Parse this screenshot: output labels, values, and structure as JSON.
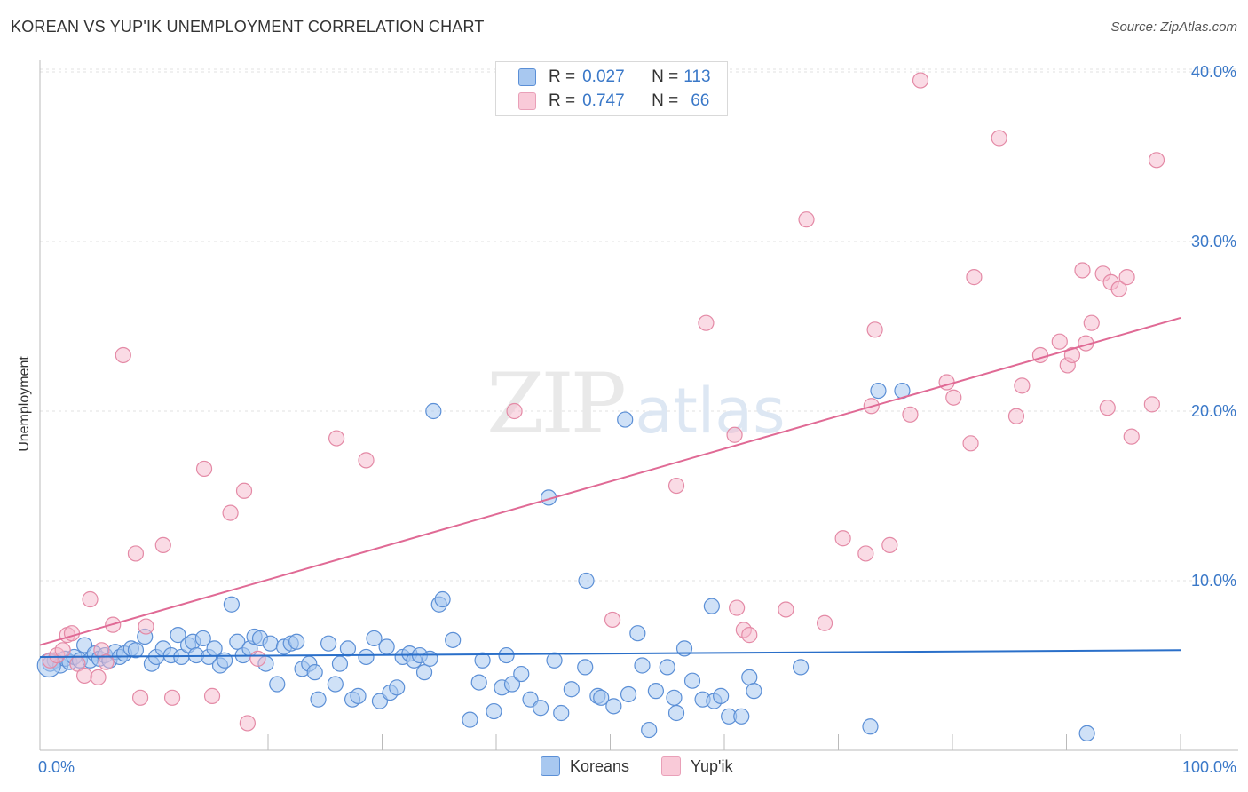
{
  "title": "KOREAN VS YUP'IK UNEMPLOYMENT CORRELATION CHART",
  "source": "Source: ZipAtlas.com",
  "watermark": {
    "zip": "ZIP",
    "atlas": "atlas"
  },
  "legend": {
    "koreans": {
      "r_label": "R = ",
      "r_value": "0.027",
      "n_label": "N = ",
      "n_value": "113"
    },
    "yupik": {
      "r_label": "R = ",
      "r_value": "0.747",
      "n_label": "N = ",
      "n_value": "66"
    }
  },
  "colors": {
    "koreans_fill": "#a8c8f0",
    "koreans_stroke": "#5b8fd6",
    "koreans_line": "#2a6fc9",
    "yupik_fill": "#f5b8cb",
    "yupik_stroke": "#e48aa6",
    "yupik_line": "#e06a95",
    "axis_label": "#3a78c8",
    "grid": "#e0e0e0"
  },
  "chart_data": {
    "type": "scatter",
    "title": "KOREAN VS YUP'IK UNEMPLOYMENT CORRELATION CHART",
    "xlabel": "",
    "ylabel": "Unemployment",
    "xlim": [
      0,
      100
    ],
    "ylim": [
      0,
      42
    ],
    "x_tick_labels": [
      "0.0%",
      "100.0%"
    ],
    "y_ticks": [
      10,
      20,
      30,
      40
    ],
    "y_tick_labels": [
      "10.0%",
      "20.0%",
      "30.0%",
      "40.0%"
    ],
    "series": [
      {
        "name": "Koreans",
        "trend": {
          "x": [
            0,
            100
          ],
          "y": [
            5.5,
            5.9
          ]
        },
        "points": [
          [
            0.9,
            5.1
          ],
          [
            1.3,
            5.3
          ],
          [
            1.8,
            5.0
          ],
          [
            2.2,
            5.4
          ],
          [
            2.6,
            5.2
          ],
          [
            3.0,
            5.5
          ],
          [
            3.5,
            5.3
          ],
          [
            3.9,
            6.2
          ],
          [
            4.4,
            5.3
          ],
          [
            4.8,
            5.7
          ],
          [
            5.2,
            5.4
          ],
          [
            5.7,
            5.6
          ],
          [
            6.1,
            5.3
          ],
          [
            6.6,
            5.8
          ],
          [
            7.0,
            5.5
          ],
          [
            7.4,
            5.7
          ],
          [
            8.0,
            6.0
          ],
          [
            8.4,
            5.9
          ],
          [
            9.2,
            6.7
          ],
          [
            9.8,
            5.1
          ],
          [
            10.2,
            5.5
          ],
          [
            10.8,
            6.0
          ],
          [
            11.5,
            5.6
          ],
          [
            12.1,
            6.8
          ],
          [
            12.4,
            5.5
          ],
          [
            13.0,
            6.2
          ],
          [
            13.4,
            6.4
          ],
          [
            13.7,
            5.6
          ],
          [
            14.3,
            6.6
          ],
          [
            14.8,
            5.5
          ],
          [
            15.3,
            6.0
          ],
          [
            15.8,
            5.0
          ],
          [
            16.2,
            5.3
          ],
          [
            16.8,
            8.6
          ],
          [
            17.3,
            6.4
          ],
          [
            17.8,
            5.6
          ],
          [
            18.4,
            6.0
          ],
          [
            18.8,
            6.7
          ],
          [
            19.3,
            6.6
          ],
          [
            19.8,
            5.1
          ],
          [
            20.2,
            6.3
          ],
          [
            20.8,
            3.9
          ],
          [
            21.4,
            6.1
          ],
          [
            22.0,
            6.3
          ],
          [
            22.5,
            6.4
          ],
          [
            23.0,
            4.8
          ],
          [
            23.6,
            5.1
          ],
          [
            24.1,
            4.6
          ],
          [
            24.4,
            3.0
          ],
          [
            25.3,
            6.3
          ],
          [
            25.9,
            3.9
          ],
          [
            26.3,
            5.1
          ],
          [
            27.0,
            6.0
          ],
          [
            27.4,
            3.0
          ],
          [
            27.9,
            3.2
          ],
          [
            28.6,
            5.5
          ],
          [
            29.3,
            6.6
          ],
          [
            29.8,
            2.9
          ],
          [
            30.4,
            6.1
          ],
          [
            30.7,
            3.4
          ],
          [
            31.3,
            3.7
          ],
          [
            31.8,
            5.5
          ],
          [
            32.4,
            5.7
          ],
          [
            32.8,
            5.3
          ],
          [
            33.3,
            5.6
          ],
          [
            33.7,
            4.6
          ],
          [
            34.2,
            5.4
          ],
          [
            35.0,
            8.6
          ],
          [
            35.3,
            8.9
          ],
          [
            36.2,
            6.5
          ],
          [
            34.5,
            20.0
          ],
          [
            37.7,
            1.8
          ],
          [
            38.5,
            4.0
          ],
          [
            38.8,
            5.3
          ],
          [
            39.8,
            2.3
          ],
          [
            40.5,
            3.7
          ],
          [
            40.9,
            5.6
          ],
          [
            41.4,
            3.9
          ],
          [
            44.6,
            14.9
          ],
          [
            42.2,
            4.5
          ],
          [
            43.0,
            3.0
          ],
          [
            43.9,
            2.5
          ],
          [
            45.1,
            5.3
          ],
          [
            45.7,
            2.2
          ],
          [
            46.6,
            3.6
          ],
          [
            47.8,
            4.9
          ],
          [
            47.9,
            10.0
          ],
          [
            48.9,
            3.2
          ],
          [
            49.2,
            3.1
          ],
          [
            50.3,
            2.6
          ],
          [
            51.3,
            19.5
          ],
          [
            51.6,
            3.3
          ],
          [
            52.4,
            6.9
          ],
          [
            52.8,
            5.0
          ],
          [
            53.4,
            1.2
          ],
          [
            54.0,
            3.5
          ],
          [
            55.0,
            4.9
          ],
          [
            55.6,
            3.1
          ],
          [
            55.8,
            2.2
          ],
          [
            56.5,
            6.0
          ],
          [
            57.2,
            4.1
          ],
          [
            58.1,
            3.0
          ],
          [
            58.9,
            8.5
          ],
          [
            59.1,
            2.9
          ],
          [
            59.7,
            3.2
          ],
          [
            60.4,
            2.0
          ],
          [
            61.5,
            2.0
          ],
          [
            62.2,
            4.3
          ],
          [
            62.6,
            3.5
          ],
          [
            66.7,
            4.9
          ],
          [
            72.8,
            1.4
          ],
          [
            73.5,
            21.2
          ],
          [
            75.6,
            21.2
          ],
          [
            91.8,
            1.0
          ]
        ],
        "big_point": [
          0.8,
          5.0
        ]
      },
      {
        "name": "Yup'ik",
        "trend": {
          "x": [
            0,
            100
          ],
          "y": [
            6.2,
            25.5
          ]
        },
        "points": [
          [
            0.9,
            5.3
          ],
          [
            1.5,
            5.6
          ],
          [
            2.0,
            5.9
          ],
          [
            2.4,
            6.8
          ],
          [
            2.8,
            6.9
          ],
          [
            3.3,
            5.1
          ],
          [
            3.9,
            4.4
          ],
          [
            4.4,
            8.9
          ],
          [
            5.1,
            4.3
          ],
          [
            5.4,
            5.9
          ],
          [
            5.8,
            5.2
          ],
          [
            6.4,
            7.4
          ],
          [
            7.3,
            23.3
          ],
          [
            8.4,
            11.6
          ],
          [
            8.8,
            3.1
          ],
          [
            9.3,
            7.3
          ],
          [
            10.8,
            12.1
          ],
          [
            11.6,
            3.1
          ],
          [
            14.4,
            16.6
          ],
          [
            15.1,
            3.2
          ],
          [
            16.7,
            14.0
          ],
          [
            17.9,
            15.3
          ],
          [
            18.2,
            1.6
          ],
          [
            19.1,
            5.4
          ],
          [
            26.0,
            18.4
          ],
          [
            28.6,
            17.1
          ],
          [
            41.6,
            20.0
          ],
          [
            55.8,
            15.6
          ],
          [
            50.2,
            7.7
          ],
          [
            58.4,
            25.2
          ],
          [
            60.9,
            18.6
          ],
          [
            61.1,
            8.4
          ],
          [
            61.7,
            7.1
          ],
          [
            62.2,
            6.8
          ],
          [
            65.4,
            8.3
          ],
          [
            67.2,
            31.3
          ],
          [
            68.8,
            7.5
          ],
          [
            70.4,
            12.5
          ],
          [
            72.4,
            11.6
          ],
          [
            72.9,
            20.3
          ],
          [
            73.2,
            24.8
          ],
          [
            74.5,
            12.1
          ],
          [
            76.3,
            19.8
          ],
          [
            77.2,
            39.5
          ],
          [
            79.5,
            21.7
          ],
          [
            80.1,
            20.8
          ],
          [
            81.6,
            18.1
          ],
          [
            81.9,
            27.9
          ],
          [
            84.1,
            36.1
          ],
          [
            85.6,
            19.7
          ],
          [
            86.1,
            21.5
          ],
          [
            87.7,
            23.3
          ],
          [
            89.4,
            24.1
          ],
          [
            90.1,
            22.7
          ],
          [
            90.5,
            23.3
          ],
          [
            91.4,
            28.3
          ],
          [
            91.7,
            24.0
          ],
          [
            92.2,
            25.2
          ],
          [
            93.2,
            28.1
          ],
          [
            93.6,
            20.2
          ],
          [
            93.9,
            27.6
          ],
          [
            94.6,
            27.2
          ],
          [
            95.3,
            27.9
          ],
          [
            95.7,
            18.5
          ],
          [
            97.5,
            20.4
          ],
          [
            97.9,
            34.8
          ]
        ]
      }
    ]
  },
  "bottom_legend": {
    "koreans": "Koreans",
    "yupik": "Yup'ik"
  }
}
